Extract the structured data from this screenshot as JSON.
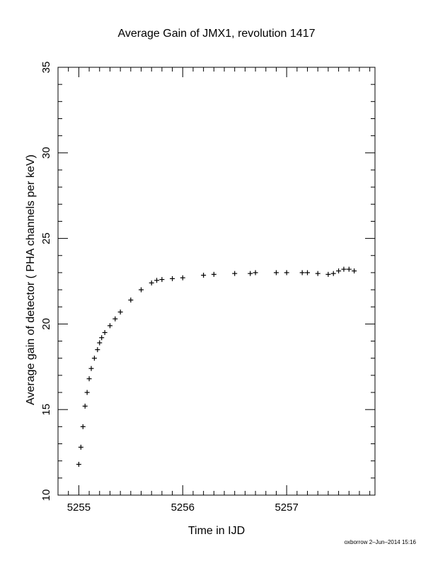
{
  "chart_data": {
    "type": "scatter",
    "title": "Average Gain of JMX1, revolution 1417",
    "xlabel": "Time in IJD",
    "ylabel": "Average gain of detector ( PHA channels per keV)",
    "xlim": [
      5254.8,
      5257.85
    ],
    "ylim": [
      10,
      35
    ],
    "x_ticks": [
      5255,
      5256,
      5257
    ],
    "x_tick_labels": [
      "5255",
      "5256",
      "5257"
    ],
    "y_ticks": [
      10,
      15,
      20,
      25,
      30,
      35
    ],
    "y_tick_labels": [
      "10",
      "15",
      "20",
      "25",
      "30",
      "35"
    ],
    "marker": "+",
    "color": "#000000",
    "grid": false,
    "series": [
      {
        "x": [
          5255.0,
          5255.02,
          5255.04,
          5255.06,
          5255.08,
          5255.1,
          5255.12,
          5255.15,
          5255.18,
          5255.2,
          5255.22,
          5255.25,
          5255.3,
          5255.35,
          5255.4,
          5255.5,
          5255.6,
          5255.7,
          5255.75,
          5255.8,
          5255.9,
          5256.0,
          5256.2,
          5256.3,
          5256.5,
          5256.65,
          5256.7,
          5256.9,
          5257.0,
          5257.15,
          5257.2,
          5257.3,
          5257.4,
          5257.45,
          5257.5,
          5257.55,
          5257.6,
          5257.65
        ],
        "y": [
          11.8,
          12.8,
          14.0,
          15.2,
          16.0,
          16.8,
          17.4,
          18.0,
          18.5,
          18.9,
          19.2,
          19.5,
          19.9,
          20.3,
          20.7,
          21.4,
          22.0,
          22.4,
          22.55,
          22.6,
          22.65,
          22.7,
          22.85,
          22.9,
          22.95,
          22.95,
          23.0,
          23.0,
          23.0,
          23.0,
          23.0,
          22.95,
          22.9,
          22.95,
          23.1,
          23.2,
          23.2,
          23.1
        ]
      }
    ]
  },
  "footer": {
    "credit": "oxborrow  2–Jun–2014 15:16"
  }
}
